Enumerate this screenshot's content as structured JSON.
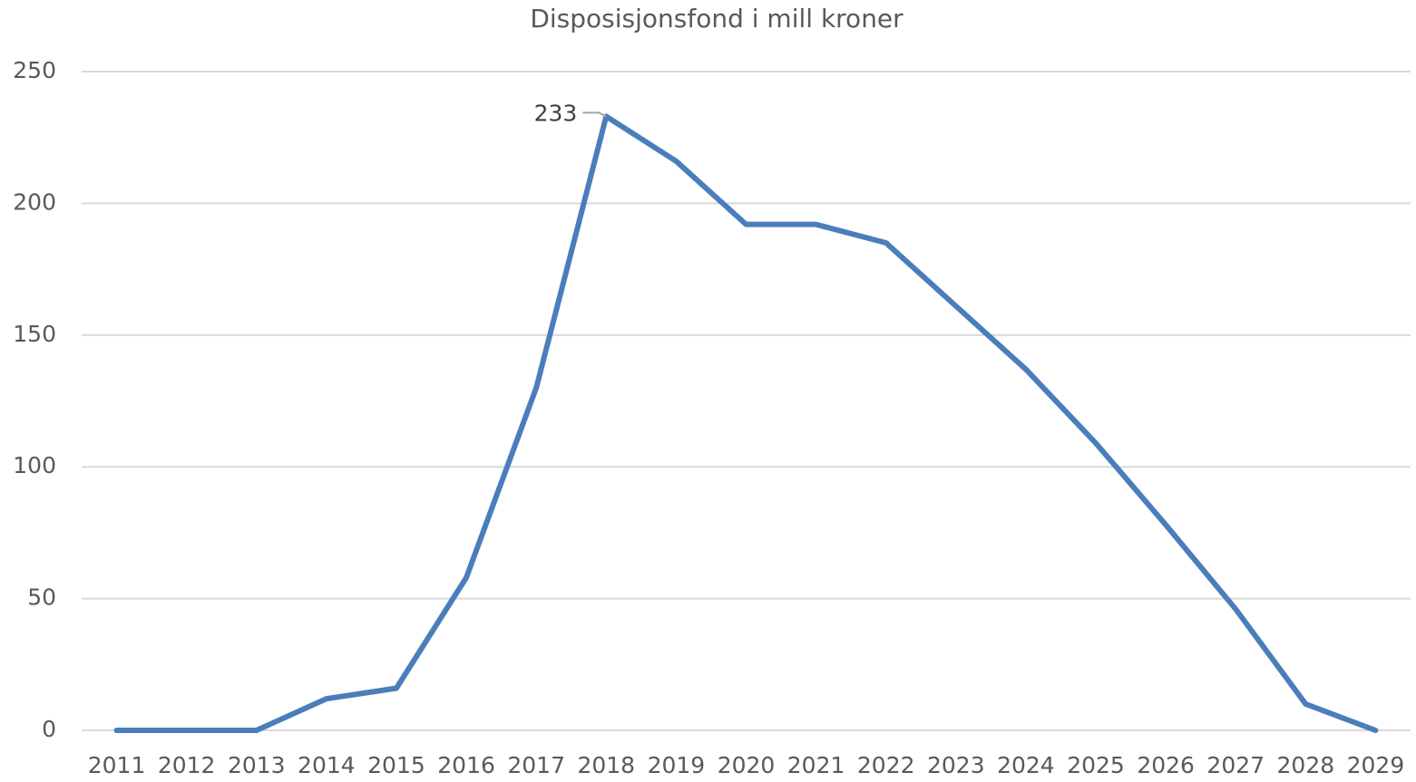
{
  "chart_data": {
    "type": "line",
    "title": "Disposisjonsfond  i mill kroner",
    "categories": [
      "2011",
      "2012",
      "2013",
      "2014",
      "2015",
      "2016",
      "2017",
      "2018",
      "2019",
      "2020",
      "2021",
      "2022",
      "2023",
      "2024",
      "2025",
      "2026",
      "2027",
      "2028",
      "2029"
    ],
    "series": [
      {
        "name": "Disposisjonsfond",
        "color": "#4a7ebb",
        "values": [
          0,
          0,
          0,
          12,
          16,
          58,
          130,
          233,
          216,
          192,
          192,
          185,
          161,
          137,
          109,
          78,
          46,
          10,
          0
        ],
        "value_labels": [
          null,
          null,
          null,
          null,
          null,
          null,
          null,
          "233",
          null,
          null,
          null,
          null,
          null,
          null,
          null,
          null,
          null,
          null,
          null
        ]
      }
    ],
    "ylim": [
      0,
      250
    ],
    "yticks": [
      0,
      50,
      100,
      150,
      200,
      250
    ],
    "grid": true
  }
}
